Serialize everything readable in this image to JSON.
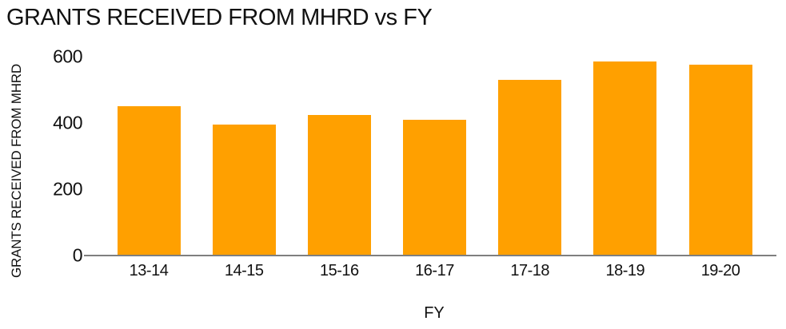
{
  "chart": {
    "title": "GRANTS RECEIVED FROM MHRD vs FY",
    "ylabel": "GRANTS RECEIVED FROM MHRD",
    "xlabel": "FY"
  },
  "chart_data": {
    "type": "bar",
    "title": "GRANTS RECEIVED FROM MHRD vs FY",
    "xlabel": "FY",
    "ylabel": "GRANTS RECEIVED FROM MHRD",
    "categories": [
      "13-14",
      "14-15",
      "15-16",
      "16-17",
      "17-18",
      "18-19",
      "19-20"
    ],
    "values": [
      450,
      395,
      425,
      410,
      530,
      585,
      575
    ],
    "yticks": [
      0,
      200,
      400,
      600
    ],
    "ylim": [
      0,
      600
    ],
    "grid": false,
    "legend": false,
    "colors": {
      "bar": "#FFA000",
      "axis_line": "#7F7F7F",
      "text": "#111111"
    }
  }
}
